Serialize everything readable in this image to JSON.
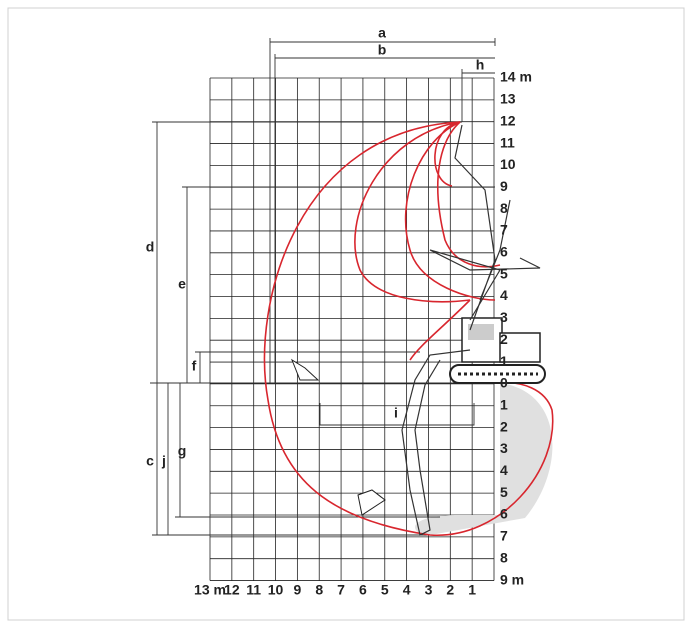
{
  "dimension_labels": {
    "a": "a",
    "b": "b",
    "c": "c",
    "d": "d",
    "e": "e",
    "f": "f",
    "g": "g",
    "h": "h",
    "i": "i",
    "j": "j"
  },
  "height_scale": [
    "14 m",
    "13",
    "12",
    "11",
    "10",
    "9",
    "8",
    "7",
    "6",
    "5",
    "4",
    "3",
    "2",
    "1",
    "0"
  ],
  "depth_scale": [
    "1",
    "2",
    "3",
    "4",
    "5",
    "6",
    "7",
    "8",
    "9 m"
  ],
  "reach_scale": [
    "13 m",
    "12",
    "11",
    "10",
    "9",
    "8",
    "7",
    "6",
    "5",
    "4",
    "3",
    "2",
    "1"
  ]
}
